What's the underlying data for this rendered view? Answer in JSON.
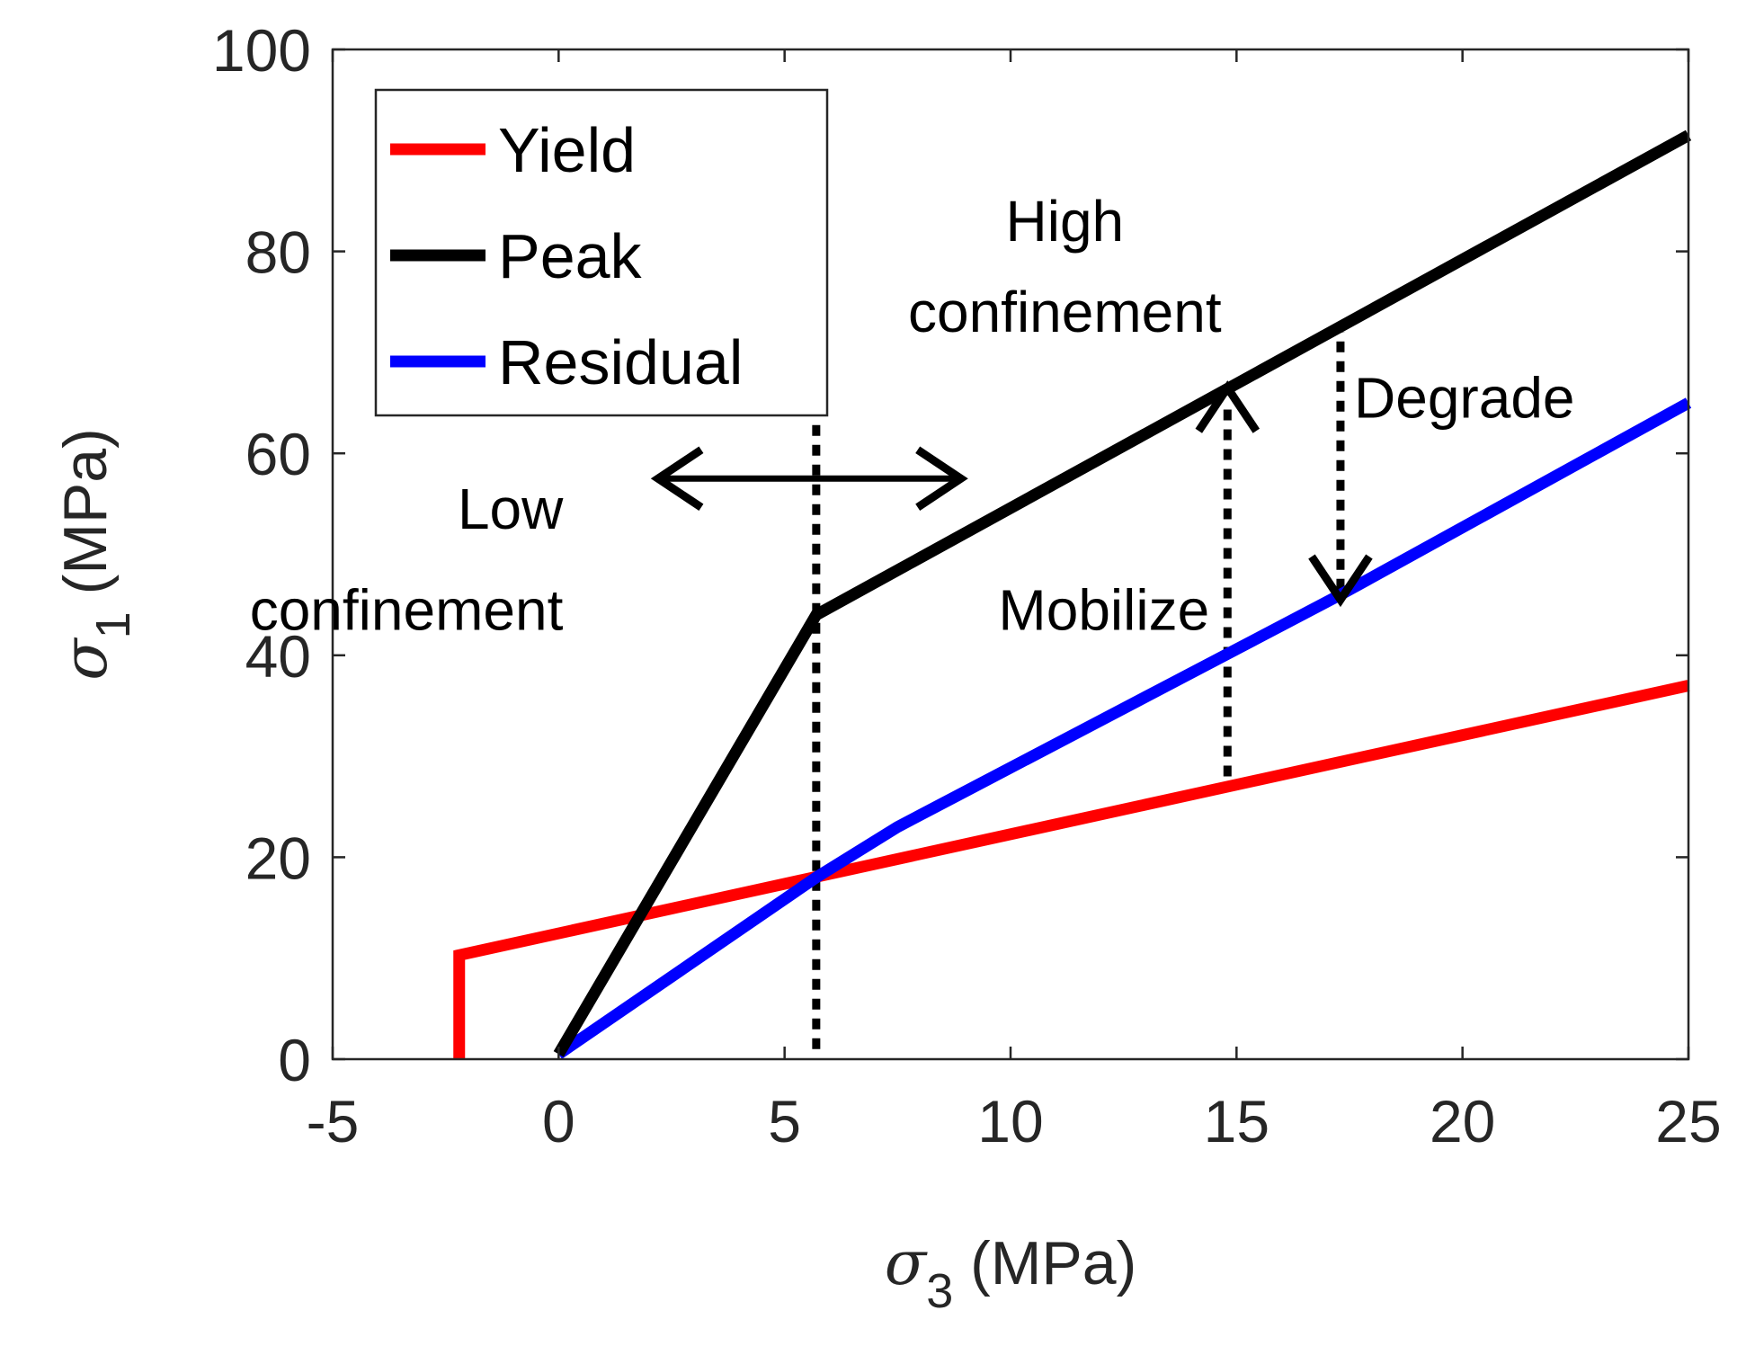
{
  "chart_data": {
    "type": "line",
    "title": "",
    "xlabel": {
      "symbol": "σ",
      "subscript": "3",
      "unit": "(MPa)"
    },
    "ylabel": {
      "symbol": "σ",
      "subscript": "1",
      "unit": "(MPa)"
    },
    "xlim": [
      -5,
      25
    ],
    "ylim": [
      0,
      100
    ],
    "xticks": [
      -5,
      0,
      5,
      10,
      15,
      20,
      25
    ],
    "yticks": [
      0,
      20,
      40,
      60,
      80,
      100
    ],
    "xtick_labels": [
      "-5",
      "0",
      "5",
      "10",
      "15",
      "20",
      "25"
    ],
    "ytick_labels": [
      "0",
      "20",
      "40",
      "60",
      "80",
      "100"
    ],
    "grid": false,
    "legend_position": "top-left",
    "series": [
      {
        "name": "Yield",
        "color": "#ff0000",
        "x": [
          -2.2,
          -2.2,
          25
        ],
        "y": [
          0,
          10.3,
          37
        ]
      },
      {
        "name": "Peak",
        "color": "#000000",
        "x": [
          0,
          5.7,
          25
        ],
        "y": [
          0.5,
          44,
          91.5
        ]
      },
      {
        "name": "Residual",
        "color": "#0000ff",
        "x": [
          0,
          5.7,
          7.5,
          17.3,
          25
        ],
        "y": [
          0.5,
          18,
          23,
          46,
          65
        ]
      }
    ],
    "dotted_lines": [
      {
        "x": [
          5.7,
          5.7
        ],
        "y": [
          1,
          63
        ]
      },
      {
        "x": [
          14.8,
          14.8
        ],
        "y": [
          28,
          65
        ]
      },
      {
        "x": [
          17.3,
          17.3
        ],
        "y": [
          46.5,
          72
        ]
      }
    ],
    "arrows": [
      {
        "from": [
          8.9,
          57.5
        ],
        "to": [
          2.2,
          57.5
        ],
        "double": true
      },
      {
        "from": [
          14.8,
          65
        ],
        "to": [
          14.8,
          66.5
        ],
        "double": false
      },
      {
        "from": [
          17.3,
          46.5
        ],
        "to": [
          17.3,
          45.5
        ],
        "double": false
      }
    ],
    "annotations": [
      {
        "id": "high",
        "lines": [
          "High",
          "confinement"
        ],
        "x": 11.2,
        "y": [
          83,
          74
        ],
        "align": "middle"
      },
      {
        "id": "low",
        "lines": [
          "Low",
          "confinement"
        ],
        "x": 0.1,
        "y": [
          54.5,
          44.5
        ],
        "align": "end"
      },
      {
        "id": "mobilize",
        "lines": [
          "Mobilize"
        ],
        "x": 14.4,
        "y": [
          44.5
        ],
        "align": "end"
      },
      {
        "id": "degrade",
        "lines": [
          "Degrade"
        ],
        "x": 17.6,
        "y": [
          65.5
        ],
        "align": "start"
      }
    ]
  }
}
